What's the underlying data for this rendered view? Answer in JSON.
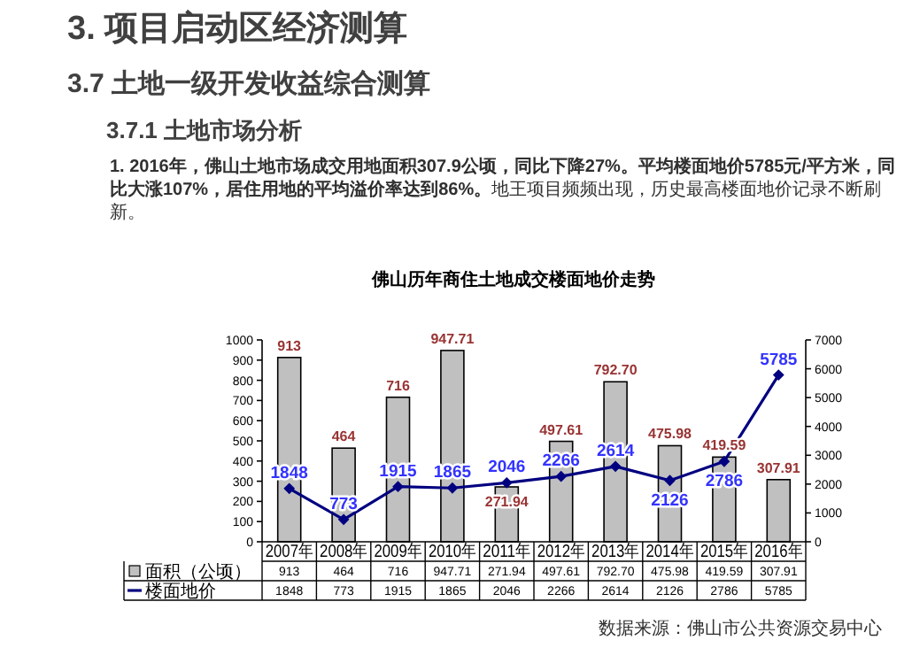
{
  "chart_data": {
    "type": "bar",
    "title": "3. 项目启动区经济测算",
    "subtitle": "3.7 土地一级开发收益综合测算",
    "annotations": [
      "3.7.1 土地市场分析",
      "1. 2016年，佛山土地市场成交用地面积307.9公顷，同比下降27%。平均楼面地价5785元/平方米，同比大涨107%，居住用地的平均溢价率达到86%。",
      "地王项目频频出现，历史最高楼面地价记录不断刷新。",
      "佛山历年商住土地成交楼面地价走势",
      "数据来源：佛山市公共资源交易中心"
    ],
    "categories": [
      "2007年",
      "2008年",
      "2009年",
      "2010年",
      "2011年",
      "2012年",
      "2013年",
      "2014年",
      "2015年",
      "2016年"
    ],
    "series": [
      {
        "name": "面积（公顷）",
        "color": "#c0c0c0",
        "values": [
          913,
          464,
          716,
          947.71,
          271.94,
          497.61,
          792.7,
          475.98,
          419.59,
          307.91
        ],
        "value_labels": [
          "913",
          "464",
          "716",
          "947.71",
          "271.94",
          "497.61",
          "792.70",
          "475.98",
          "419.59",
          "307.91"
        ]
      },
      {
        "name": "楼面地价",
        "type": "line",
        "axis": "y2",
        "color": "#000080",
        "values": [
          1848,
          773,
          1915,
          1865,
          2046,
          2266,
          2614,
          2126,
          2786,
          5785
        ],
        "value_labels": [
          "1848",
          "773",
          "1915",
          "1865",
          "2046",
          "2266",
          "2614",
          "2126",
          "2786",
          "5785"
        ]
      }
    ],
    "ylim": [
      0,
      1000
    ],
    "yticks": [
      0,
      100,
      200,
      300,
      400,
      500,
      600,
      700,
      800,
      900,
      1000
    ],
    "y2lim": [
      0,
      7000
    ],
    "y2ticks": [
      0,
      1000,
      2000,
      3000,
      4000,
      5000,
      6000,
      7000
    ],
    "data_labels": true,
    "legend": "bottom",
    "marker": "diamond",
    "grid": false
  }
}
